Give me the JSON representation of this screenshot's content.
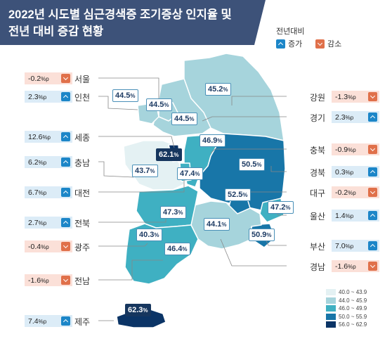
{
  "title": {
    "line1": "2022년 시도별 심근경색증 조기증상 인지율 및",
    "line2": "전년 대비 증감 현황"
  },
  "legend": {
    "title": "전년대비",
    "increase": "증가",
    "decrease": "감소",
    "increase_icon": "up-arrow-icon",
    "decrease_icon": "down-arrow-icon"
  },
  "colors": {
    "increase": "#dcecf7",
    "decrease": "#fbe0d8",
    "increase_icon": "#1c86c8",
    "decrease_icon": "#e0704a"
  },
  "unit": "%p",
  "value_unit": "%",
  "regions": {
    "seoul": {
      "name": "서울",
      "change": "-0.2",
      "rate": "44.5"
    },
    "incheon": {
      "name": "인천",
      "change": "2.3",
      "rate": "44.5"
    },
    "gyeonggi": {
      "name": "경기",
      "change": "2.3",
      "rate": "44.5"
    },
    "gangwon": {
      "name": "강원",
      "change": "-1.3",
      "rate": "45.2"
    },
    "sejong": {
      "name": "세종",
      "change": "12.6",
      "rate": "62.1"
    },
    "chungnam": {
      "name": "충남",
      "change": "6.2",
      "rate": "43.7"
    },
    "chungbuk": {
      "name": "충북",
      "change": "-0.9",
      "rate": "46.9"
    },
    "daejeon": {
      "name": "대전",
      "change": "6.7",
      "rate": "47.4"
    },
    "gyeongbuk": {
      "name": "경북",
      "change": "0.3",
      "rate": "50.5"
    },
    "daegu": {
      "name": "대구",
      "change": "-0.2",
      "rate": "52.5"
    },
    "jeonbuk": {
      "name": "전북",
      "change": "2.7",
      "rate": "47.3"
    },
    "ulsan": {
      "name": "울산",
      "change": "1.4",
      "rate": "47.2"
    },
    "gwangju": {
      "name": "광주",
      "change": "-0.4",
      "rate": "40.3"
    },
    "busan": {
      "name": "부산",
      "change": "7.0",
      "rate": "50.9"
    },
    "jeonnam": {
      "name": "전남",
      "change": "-1.6",
      "rate": "46.4"
    },
    "gyeongnam": {
      "name": "경남",
      "change": "-1.6",
      "rate": "44.1"
    },
    "jeju": {
      "name": "제주",
      "change": "7.4",
      "rate": "62.3"
    }
  },
  "scale": [
    {
      "label": "40.0 ~ 43.9",
      "color": "#e4f1f3"
    },
    {
      "label": "44.0 ~ 45.9",
      "color": "#a6d4dc"
    },
    {
      "label": "46.0 ~ 49.9",
      "color": "#3fb0c2"
    },
    {
      "label": "50.0 ~ 55.9",
      "color": "#1876a8"
    },
    {
      "label": "56.0 ~ 62.9",
      "color": "#0b3466"
    }
  ]
}
